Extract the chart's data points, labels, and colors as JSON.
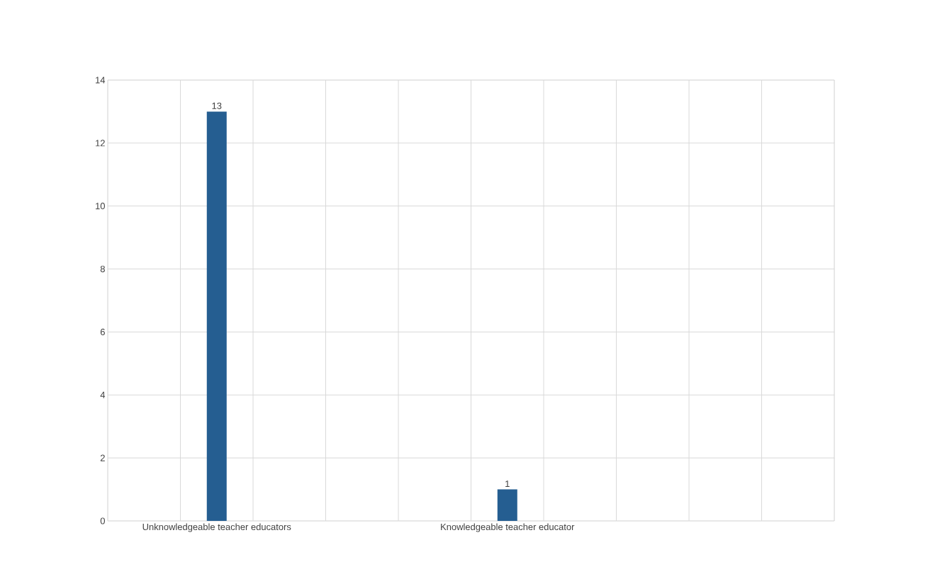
{
  "chart_data": {
    "type": "bar",
    "categories": [
      null,
      "Unknowledgeable teacher educators",
      null,
      null,
      null,
      "Knowledgeable teacher educator",
      null,
      null,
      null,
      null
    ],
    "values": [
      null,
      13,
      null,
      null,
      null,
      1,
      null,
      null,
      null,
      null
    ],
    "color": "#255e91",
    "ylim": [
      0,
      14
    ],
    "yticks": [
      0,
      2,
      4,
      6,
      8,
      10,
      12,
      14
    ],
    "grid": true,
    "data_labels": true
  }
}
